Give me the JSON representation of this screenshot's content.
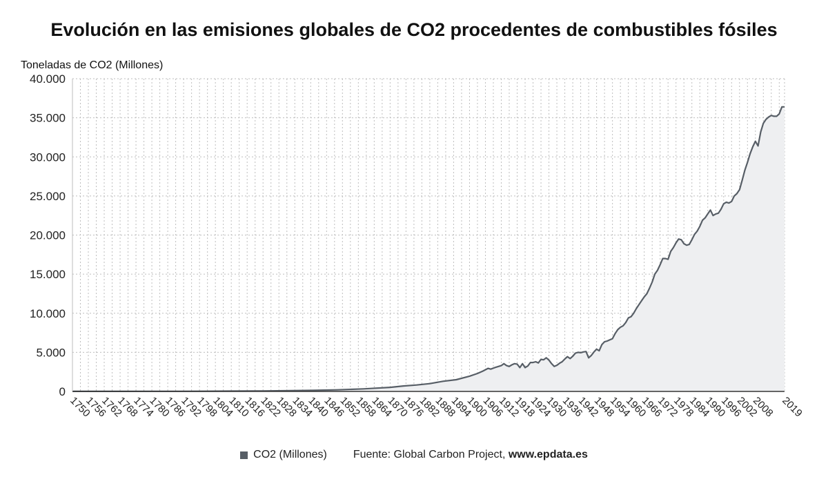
{
  "chart_data": {
    "type": "area",
    "title": "Evolución en las emisiones globales de CO2 procedentes de combustibles fósiles",
    "ylabel": "Toneladas de CO2 (Millones)",
    "ylim": [
      0,
      40000
    ],
    "xlim": [
      1750,
      2019
    ],
    "grid": true,
    "y_ticks": [
      0,
      5000,
      10000,
      15000,
      20000,
      25000,
      30000,
      35000,
      40000
    ],
    "y_tick_labels": [
      "0",
      "5.000",
      "10.000",
      "15.000",
      "20.000",
      "25.000",
      "30.000",
      "35.000",
      "40.000"
    ],
    "x_ticks": [
      1750,
      1753,
      1756,
      1759,
      1762,
      1765,
      1768,
      1771,
      1774,
      1777,
      1780,
      1783,
      1786,
      1789,
      1792,
      1795,
      1798,
      1801,
      1804,
      1807,
      1810,
      1813,
      1816,
      1819,
      1822,
      1825,
      1828,
      1831,
      1834,
      1837,
      1840,
      1843,
      1846,
      1849,
      1852,
      1855,
      1858,
      1861,
      1864,
      1867,
      1870,
      1873,
      1876,
      1879,
      1882,
      1885,
      1888,
      1891,
      1894,
      1897,
      1900,
      1903,
      1906,
      1909,
      1912,
      1915,
      1918,
      1921,
      1924,
      1927,
      1930,
      1933,
      1936,
      1939,
      1942,
      1945,
      1948,
      1951,
      1954,
      1957,
      1960,
      1963,
      1966,
      1969,
      1972,
      1975,
      1978,
      1981,
      1984,
      1987,
      1990,
      1993,
      1996,
      1999,
      2002,
      2005,
      2008,
      2011,
      2014,
      2017
    ],
    "x_tick_labels": [
      "1750",
      "1756",
      "1762",
      "1768",
      "1774",
      "1780",
      "1786",
      "1792",
      "1798",
      "1804",
      "1810",
      "1816",
      "1822",
      "1828",
      "1834",
      "1840",
      "1846",
      "1852",
      "1858",
      "1864",
      "1870",
      "1876",
      "1882",
      "1888",
      "1894",
      "1900",
      "1906",
      "1912",
      "1918",
      "1924",
      "1930",
      "1936",
      "1942",
      "1948",
      "1954",
      "1960",
      "1966",
      "1972",
      "1978",
      "1984",
      "1990",
      "1996",
      "2002",
      "2008",
      "2019"
    ],
    "x_tick_label_years": [
      1750,
      1756,
      1762,
      1768,
      1774,
      1780,
      1786,
      1792,
      1798,
      1804,
      1810,
      1816,
      1822,
      1828,
      1834,
      1840,
      1846,
      1852,
      1858,
      1864,
      1870,
      1876,
      1882,
      1888,
      1894,
      1900,
      1906,
      1912,
      1918,
      1924,
      1930,
      1936,
      1942,
      1948,
      1954,
      1960,
      1966,
      1972,
      1978,
      1984,
      1990,
      1996,
      2002,
      2008,
      2019
    ],
    "series": [
      {
        "name": "CO2 (Millones)",
        "color": "#575e66",
        "fill": "#eeeff1",
        "x": [
          1750,
          1760,
          1770,
          1780,
          1790,
          1800,
          1810,
          1820,
          1830,
          1840,
          1850,
          1860,
          1870,
          1875,
          1880,
          1885,
          1890,
          1895,
          1900,
          1903,
          1905,
          1907,
          1908,
          1910,
          1912,
          1913,
          1914,
          1915,
          1916,
          1917,
          1918,
          1919,
          1920,
          1921,
          1922,
          1923,
          1924,
          1925,
          1926,
          1927,
          1928,
          1929,
          1930,
          1931,
          1932,
          1933,
          1934,
          1935,
          1936,
          1937,
          1938,
          1939,
          1940,
          1941,
          1942,
          1943,
          1944,
          1945,
          1946,
          1947,
          1948,
          1949,
          1950,
          1951,
          1952,
          1953,
          1954,
          1955,
          1956,
          1957,
          1958,
          1959,
          1960,
          1961,
          1962,
          1963,
          1964,
          1965,
          1966,
          1967,
          1968,
          1969,
          1970,
          1971,
          1972,
          1973,
          1974,
          1975,
          1976,
          1977,
          1978,
          1979,
          1980,
          1981,
          1982,
          1983,
          1984,
          1985,
          1986,
          1987,
          1988,
          1989,
          1990,
          1991,
          1992,
          1993,
          1994,
          1995,
          1996,
          1997,
          1998,
          1999,
          2000,
          2001,
          2002,
          2003,
          2004,
          2005,
          2006,
          2007,
          2008,
          2009,
          2010,
          2011,
          2012,
          2013,
          2014,
          2015,
          2016,
          2017,
          2018,
          2019
        ],
        "values": [
          9,
          11,
          13,
          15,
          18,
          28,
          40,
          55,
          90,
          130,
          200,
          330,
          520,
          700,
          820,
          1000,
          1300,
          1500,
          1950,
          2300,
          2600,
          2950,
          2850,
          3100,
          3300,
          3550,
          3300,
          3200,
          3400,
          3550,
          3500,
          3050,
          3550,
          3050,
          3250,
          3700,
          3700,
          3800,
          3650,
          4100,
          4050,
          4300,
          4000,
          3550,
          3200,
          3350,
          3600,
          3800,
          4150,
          4450,
          4200,
          4500,
          4900,
          5000,
          4950,
          5050,
          5100,
          4300,
          4600,
          5050,
          5400,
          5200,
          6000,
          6350,
          6450,
          6600,
          6750,
          7400,
          7900,
          8200,
          8400,
          8800,
          9400,
          9550,
          10000,
          10600,
          11100,
          11600,
          12100,
          12500,
          13200,
          14000,
          15000,
          15500,
          16200,
          17000,
          17000,
          16900,
          17900,
          18400,
          19000,
          19500,
          19400,
          18900,
          18700,
          18800,
          19400,
          20100,
          20500,
          21100,
          21900,
          22200,
          22700,
          23200,
          22500,
          22700,
          22800,
          23300,
          24000,
          24200,
          24100,
          24300,
          25000,
          25300,
          25800,
          27000,
          28300,
          29300,
          30400,
          31300,
          32000,
          31400,
          33200,
          34300,
          34800,
          35100,
          35300,
          35200,
          35200,
          35500,
          36400,
          36400
        ]
      }
    ]
  },
  "legend": {
    "entry": "CO2 (Millones)",
    "source": "Fuente: Global Carbon Project, ",
    "source_bold": "www.epdata.es"
  }
}
